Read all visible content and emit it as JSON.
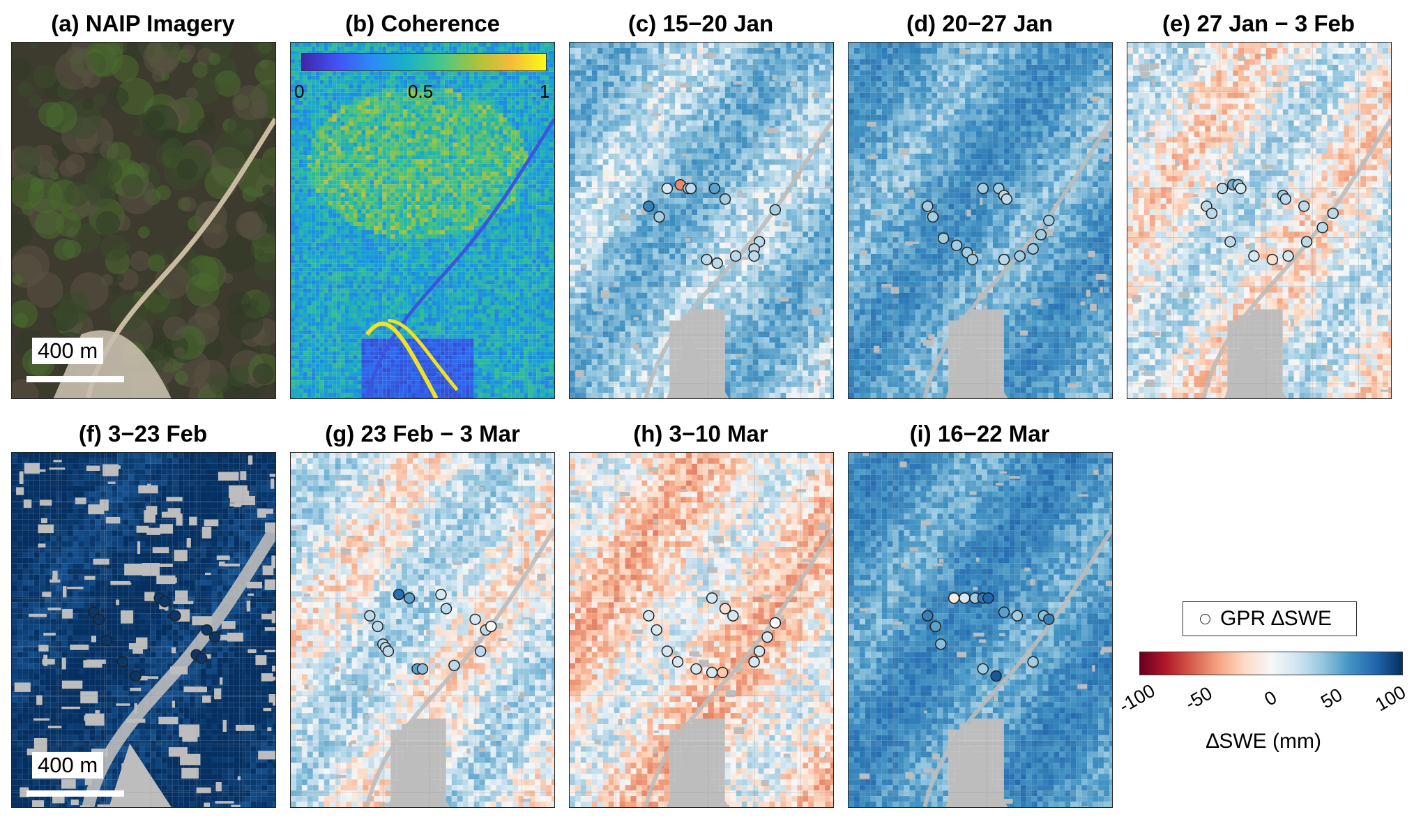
{
  "panels": [
    {
      "id": "a",
      "title": "(a) NAIP Imagery",
      "kind": "naip",
      "scalebar": "400 m"
    },
    {
      "id": "b",
      "title": "(b) Coherence",
      "kind": "coherence",
      "colorbar_ticks": [
        "0",
        "0.5",
        "1"
      ]
    },
    {
      "id": "c",
      "title": "(c) 15−20 Jan",
      "kind": "dswe",
      "tone": 0.18,
      "points": [
        [
          0.37,
          0.41,
          0.05
        ],
        [
          0.42,
          0.4,
          -0.25
        ],
        [
          0.45,
          0.41,
          0.15
        ],
        [
          0.46,
          0.41,
          0.1
        ],
        [
          0.55,
          0.41,
          0.3
        ],
        [
          0.59,
          0.44,
          0.15
        ],
        [
          0.3,
          0.46,
          0.45
        ],
        [
          0.34,
          0.49,
          0.15
        ],
        [
          0.78,
          0.47,
          0.15
        ],
        [
          0.72,
          0.56,
          0.1
        ],
        [
          0.7,
          0.58,
          0.1
        ],
        [
          0.52,
          0.61,
          0.1
        ],
        [
          0.56,
          0.62,
          0.1
        ],
        [
          0.63,
          0.6,
          0.1
        ],
        [
          0.7,
          0.6,
          0.1
        ]
      ]
    },
    {
      "id": "d",
      "title": "(d) 20−27 Jan",
      "kind": "dswe",
      "tone": 0.3,
      "points": [
        [
          0.51,
          0.41,
          0.15
        ],
        [
          0.57,
          0.41,
          0.15
        ],
        [
          0.59,
          0.43,
          0.1
        ],
        [
          0.6,
          0.44,
          0.1
        ],
        [
          0.3,
          0.46,
          0.15
        ],
        [
          0.32,
          0.49,
          0.15
        ],
        [
          0.36,
          0.55,
          0.15
        ],
        [
          0.41,
          0.57,
          0.15
        ],
        [
          0.45,
          0.59,
          0.15
        ],
        [
          0.47,
          0.61,
          0.15
        ],
        [
          0.59,
          0.61,
          0.1
        ],
        [
          0.65,
          0.6,
          0.15
        ],
        [
          0.7,
          0.58,
          0.15
        ],
        [
          0.73,
          0.54,
          0.15
        ],
        [
          0.76,
          0.5,
          0.15
        ]
      ]
    },
    {
      "id": "e",
      "title": "(e) 27 Jan − 3 Feb",
      "kind": "dswe",
      "tone": 0.02,
      "points": [
        [
          0.36,
          0.41,
          0.1
        ],
        [
          0.4,
          0.4,
          0.25
        ],
        [
          0.42,
          0.4,
          0.15
        ],
        [
          0.43,
          0.41,
          0.05
        ],
        [
          0.59,
          0.43,
          0.15
        ],
        [
          0.6,
          0.44,
          0.1
        ],
        [
          0.3,
          0.46,
          0.1
        ],
        [
          0.32,
          0.48,
          0.1
        ],
        [
          0.67,
          0.46,
          0.1
        ],
        [
          0.78,
          0.48,
          0.1
        ],
        [
          0.74,
          0.52,
          0.1
        ],
        [
          0.68,
          0.56,
          0.1
        ],
        [
          0.39,
          0.56,
          0.1
        ],
        [
          0.48,
          0.6,
          0.05
        ],
        [
          0.55,
          0.61,
          -0.05
        ],
        [
          0.61,
          0.6,
          0.05
        ]
      ]
    },
    {
      "id": "f",
      "title": "(f) 3−23 Feb",
      "kind": "dswe",
      "tone": 0.95,
      "points": [
        [
          0.56,
          0.41,
          0.95
        ],
        [
          0.58,
          0.42,
          0.95
        ],
        [
          0.62,
          0.46,
          0.95
        ],
        [
          0.31,
          0.45,
          0.95
        ],
        [
          0.33,
          0.47,
          0.95
        ],
        [
          0.36,
          0.53,
          0.95
        ],
        [
          0.42,
          0.59,
          0.95
        ],
        [
          0.74,
          0.5,
          0.95
        ],
        [
          0.77,
          0.52,
          0.95
        ],
        [
          0.7,
          0.57,
          0.95
        ],
        [
          0.72,
          0.58,
          0.95
        ],
        [
          0.47,
          0.63,
          0.95
        ]
      ]
    },
    {
      "id": "g",
      "title": "(g) 23 Feb − 3 Mar",
      "kind": "dswe",
      "tone": 0.05,
      "points": [
        [
          0.41,
          0.4,
          0.55
        ],
        [
          0.45,
          0.41,
          0.3
        ],
        [
          0.57,
          0.4,
          0.05
        ],
        [
          0.59,
          0.44,
          0.1
        ],
        [
          0.7,
          0.47,
          0.05
        ],
        [
          0.74,
          0.5,
          0.1
        ],
        [
          0.76,
          0.49,
          0.0
        ],
        [
          0.3,
          0.46,
          0.1
        ],
        [
          0.33,
          0.49,
          0.1
        ],
        [
          0.35,
          0.54,
          0.1
        ],
        [
          0.36,
          0.55,
          0.1
        ],
        [
          0.37,
          0.56,
          0.1
        ],
        [
          0.48,
          0.61,
          0.3
        ],
        [
          0.5,
          0.61,
          0.2
        ],
        [
          0.62,
          0.6,
          0.1
        ],
        [
          0.72,
          0.56,
          0.1
        ]
      ]
    },
    {
      "id": "h",
      "title": "(h) 3−10 Mar",
      "kind": "dswe",
      "tone": -0.05,
      "points": [
        [
          0.54,
          0.41,
          0.05
        ],
        [
          0.59,
          0.44,
          -0.05
        ],
        [
          0.62,
          0.46,
          0.05
        ],
        [
          0.3,
          0.46,
          0.05
        ],
        [
          0.33,
          0.5,
          0.05
        ],
        [
          0.37,
          0.56,
          0.05
        ],
        [
          0.41,
          0.59,
          0.05
        ],
        [
          0.48,
          0.61,
          0.05
        ],
        [
          0.54,
          0.62,
          0.05
        ],
        [
          0.58,
          0.62,
          -0.1
        ],
        [
          0.7,
          0.59,
          0.05
        ],
        [
          0.72,
          0.56,
          0.05
        ],
        [
          0.75,
          0.52,
          0.05
        ],
        [
          0.78,
          0.48,
          0.0
        ]
      ]
    },
    {
      "id": "i",
      "title": "(i) 16−22 Mar",
      "kind": "dswe",
      "tone": 0.35,
      "points": [
        [
          0.4,
          0.41,
          -0.02
        ],
        [
          0.44,
          0.41,
          0.05
        ],
        [
          0.48,
          0.41,
          0.15
        ],
        [
          0.51,
          0.41,
          0.5
        ],
        [
          0.53,
          0.41,
          0.6
        ],
        [
          0.3,
          0.46,
          0.45
        ],
        [
          0.33,
          0.49,
          0.3
        ],
        [
          0.35,
          0.54,
          0.2
        ],
        [
          0.59,
          0.45,
          0.3
        ],
        [
          0.64,
          0.46,
          0.15
        ],
        [
          0.74,
          0.46,
          0.2
        ],
        [
          0.76,
          0.47,
          0.45
        ],
        [
          0.51,
          0.61,
          0.15
        ],
        [
          0.56,
          0.63,
          0.7
        ],
        [
          0.7,
          0.59,
          0.15
        ]
      ]
    }
  ],
  "scalebar_f": "400 m",
  "legend": {
    "label": "GPR ∆SWE"
  },
  "colorbar": {
    "ticks": [
      "-100",
      "-50",
      "0",
      "50",
      "100"
    ],
    "label": "∆SWE (mm)"
  },
  "colors": {
    "nodata": "#bdbdbd",
    "deep_blue": "#08306b",
    "red": "#67001f",
    "white": "#f7f7f7"
  }
}
